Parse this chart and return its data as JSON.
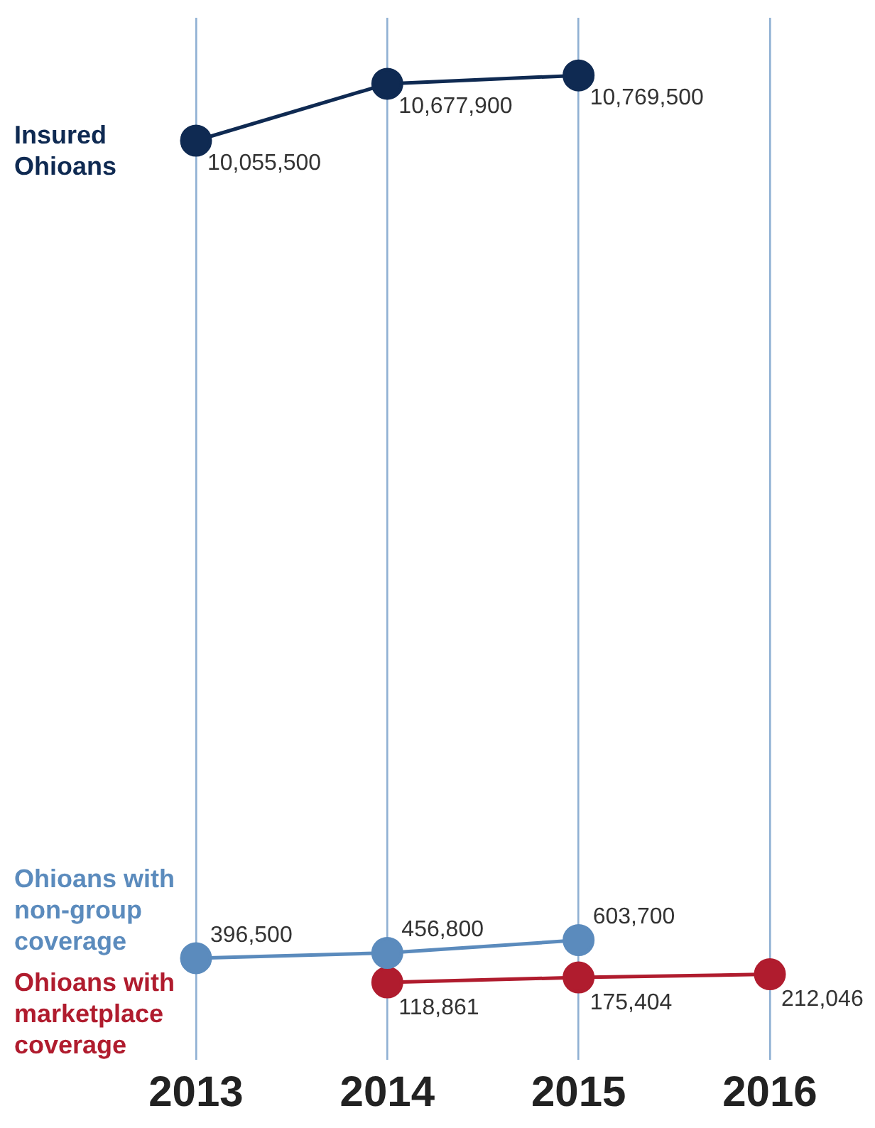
{
  "chart_data": {
    "type": "line",
    "categories": [
      "2013",
      "2014",
      "2015",
      "2016"
    ],
    "series": [
      {
        "name": "Insured Ohioans",
        "color": "#0f2a52",
        "values": [
          10055500,
          10677900,
          10769500,
          null
        ],
        "value_labels": [
          "10,055,500",
          "10,677,900",
          "10,769,500",
          null
        ]
      },
      {
        "name": "Ohioans with non-group coverage",
        "color": "#5b8bbd",
        "values": [
          396500,
          456800,
          603700,
          null
        ],
        "value_labels": [
          "396,500",
          "456,800",
          "603,700",
          null
        ],
        "axis": "y2"
      },
      {
        "name": "Ohioans with marketplace coverage",
        "color": "#b01c2e",
        "values": [
          null,
          118861,
          175404,
          212046
        ],
        "value_labels": [
          null,
          "118,861",
          "175,404",
          "212,046"
        ],
        "axis": "y2"
      }
    ],
    "ylim": [
      0,
      11400000
    ],
    "y2lim": [
      -770000,
      11190000
    ],
    "grid": "x",
    "marker": "circle",
    "line_style": "solid",
    "tick_labels": "x"
  }
}
